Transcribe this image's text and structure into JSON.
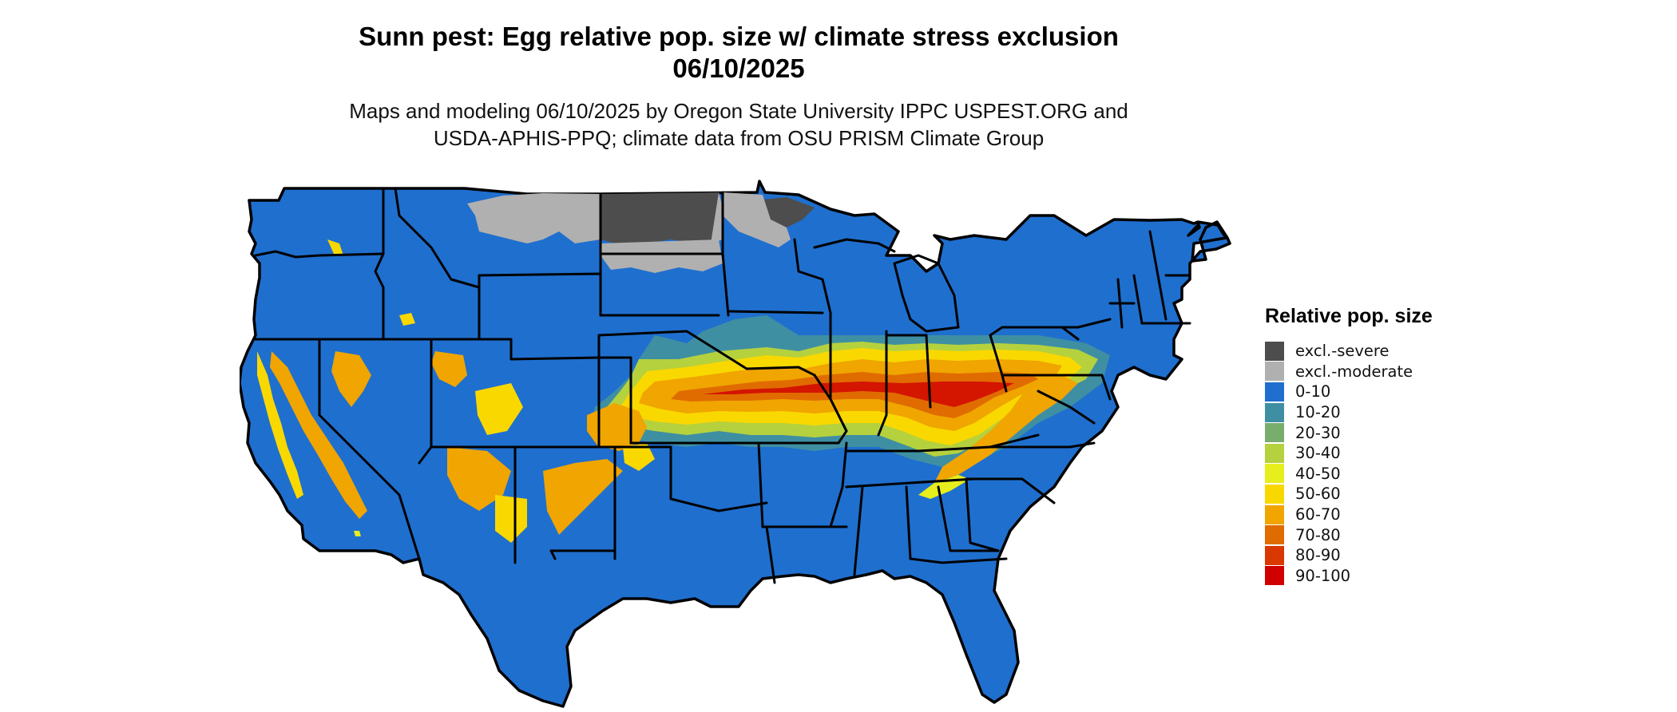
{
  "header": {
    "title_line1": "Sunn pest: Egg relative pop. size w/ climate stress exclusion",
    "title_line2": "06/10/2025",
    "subtitle_line1": "Maps and modeling 06/10/2025 by Oregon State University IPPC USPEST.ORG and",
    "subtitle_line2": "USDA-APHIS-PPQ; climate data from OSU PRISM Climate Group"
  },
  "legend": {
    "title": "Relative pop. size",
    "items": [
      {
        "label": "excl.-severe",
        "color": "#4d4d4d"
      },
      {
        "label": "excl.-moderate",
        "color": "#b0b0b0"
      },
      {
        "label": "0-10",
        "color": "#1f6fce"
      },
      {
        "label": "10-20",
        "color": "#3f8fa3"
      },
      {
        "label": "20-30",
        "color": "#79ad6e"
      },
      {
        "label": "30-40",
        "color": "#b5d13d"
      },
      {
        "label": "40-50",
        "color": "#e6ee1c"
      },
      {
        "label": "50-60",
        "color": "#f9d800"
      },
      {
        "label": "60-70",
        "color": "#f0a500"
      },
      {
        "label": "70-80",
        "color": "#e06c00"
      },
      {
        "label": "80-90",
        "color": "#d93800"
      },
      {
        "label": "90-100",
        "color": "#d10000"
      }
    ]
  },
  "map": {
    "base_color": "#1f6fce",
    "border_color": "#000000",
    "region": "Contiguous United States"
  }
}
